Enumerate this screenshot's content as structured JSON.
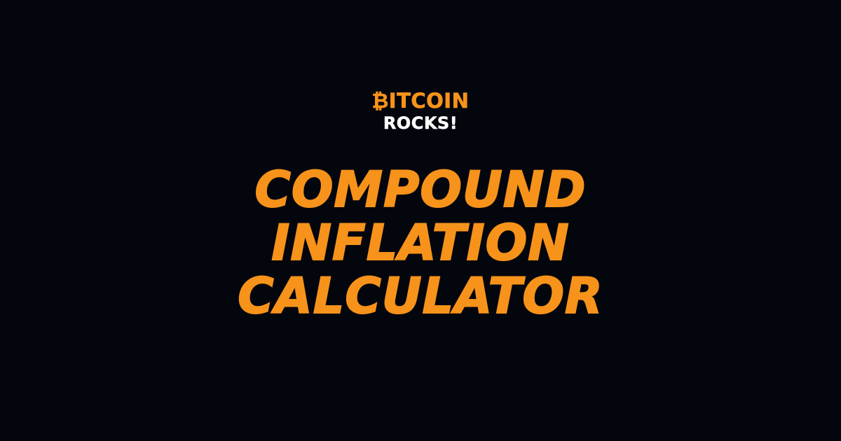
{
  "logo": {
    "line1": "₿ITCOIN",
    "line2": "ROCKS!"
  },
  "title": {
    "lines": [
      "COMPOUND",
      "INFLATION",
      "CALCULATOR"
    ]
  },
  "colors": {
    "background": "#04060d",
    "accent": "#f7931a",
    "logo_secondary": "#ffffff"
  }
}
